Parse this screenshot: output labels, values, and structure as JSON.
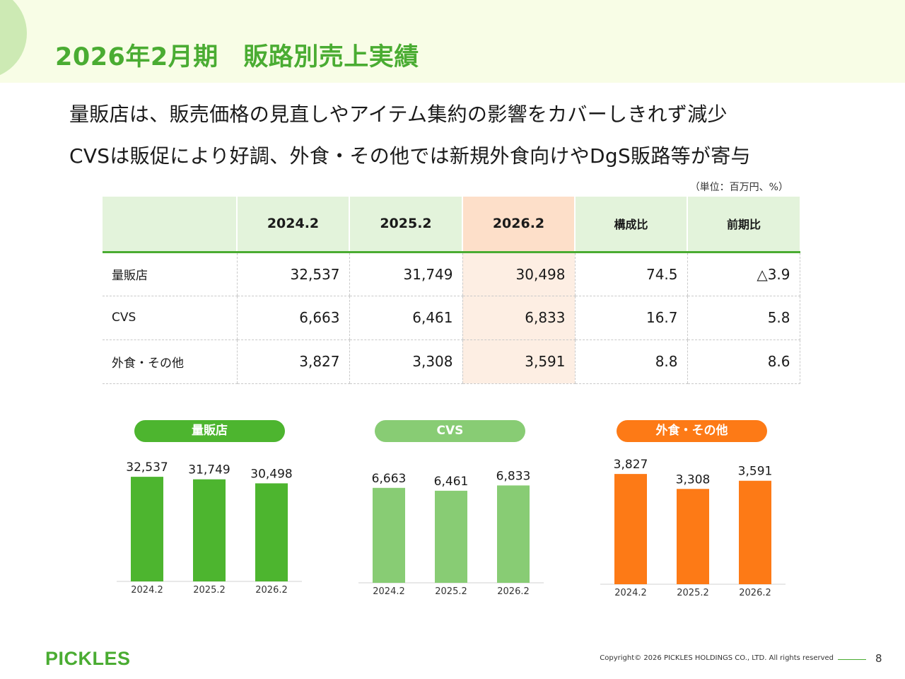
{
  "page": {
    "title": "2026年2月期　販路別売上実績",
    "headline_1": "量販店は、販売価格の見直しやアイテム集約の影響をカバーしきれず減少",
    "headline_2": "CVSは販促により好調、外食・その他では新規外食向けやDgS販路等が寄与",
    "unit_note": "（単位：百万円、%）",
    "logo_text": "PICKLES",
    "copyright": "Copyright© 2026 PICKLES HOLDINGS CO., LTD. All rights reserved",
    "page_number": "8"
  },
  "table": {
    "headers": [
      "",
      "2024.2",
      "2025.2",
      "2026.2",
      "構成比",
      "前期比"
    ],
    "rows": [
      {
        "label": "量販店",
        "cells": [
          "32,537",
          "31,749",
          "30,498",
          "74.5",
          "△3.9"
        ]
      },
      {
        "label": "CVS",
        "cells": [
          "6,663",
          "6,461",
          "6,833",
          "16.7",
          "5.8"
        ]
      },
      {
        "label": "外食・その他",
        "cells": [
          "3,827",
          "3,308",
          "3,591",
          "8.8",
          "8.6"
        ]
      }
    ]
  },
  "colors": {
    "title_green": "#4aac32",
    "bar_green": "#4db52f",
    "bar_light_green": "#88cc74",
    "bar_orange": "#fd7a16"
  },
  "chart_data": [
    {
      "type": "bar",
      "title": "量販店",
      "categories": [
        "2024.2",
        "2025.2",
        "2026.2"
      ],
      "values": [
        32537,
        31749,
        30498
      ],
      "value_labels": [
        "32,537",
        "31,749",
        "30,498"
      ],
      "ylim": [
        0,
        33000
      ],
      "color": "#4db52f"
    },
    {
      "type": "bar",
      "title": "CVS",
      "categories": [
        "2024.2",
        "2025.2",
        "2026.2"
      ],
      "values": [
        6663,
        6461,
        6833
      ],
      "value_labels": [
        "6,663",
        "6,461",
        "6,833"
      ],
      "ylim": [
        0,
        6900
      ],
      "color": "#88cc74"
    },
    {
      "type": "bar",
      "title": "外食・その他",
      "categories": [
        "2024.2",
        "2025.2",
        "2026.2"
      ],
      "values": [
        3827,
        3308,
        3591
      ],
      "value_labels": [
        "3,827",
        "3,308",
        "3,591"
      ],
      "ylim": [
        0,
        3830
      ],
      "color": "#fd7a16"
    }
  ]
}
